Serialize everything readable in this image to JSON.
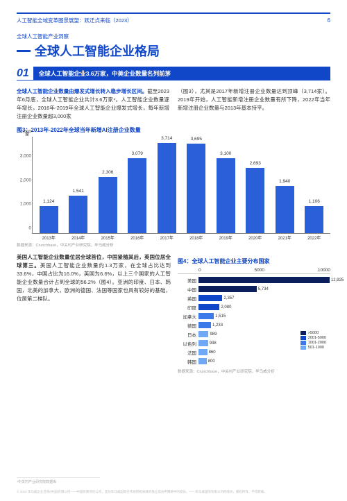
{
  "header": {
    "left": "人工智能全域变革图景展望：跃迁点来临（2023）",
    "pageNum": "6"
  },
  "subtitle": "全球人工智能产业洞察",
  "mainTitle": "全球人工智能企业格局",
  "section": {
    "num": "01",
    "text": "全球人工智能企业3.6万家，中美企业数量名列前茅"
  },
  "bodyL": {
    "lead": "全球人工智能企业数量由爆发式增长转入稳步增长区间。",
    "rest": "截至2023年6月底，全球人工智能企业共计3.6万家⁴。人工智能企业数量逐年增长，2016年-2019年全球人工智能企业爆发式增长，每年新增注册企业数量超3,000家"
  },
  "bodyR": "（图3），尤其是2017年新增注册企业数量达到顶峰（3,714家）。2019年开始，人工智能新增注册企业数量有所下降，2022年当年新增注册企业数量与2013年基本持平。",
  "chart3": {
    "title": "图3：2013年-2022年全球当年新增AI注册企业数量",
    "yUnit": "家",
    "yMax": 4000,
    "yTicks": [
      0,
      1000,
      2000,
      3000,
      4000
    ],
    "barColor": "#2b5fd9",
    "data": [
      {
        "x": "2013年",
        "v": 1124
      },
      {
        "x": "2014年",
        "v": 1541
      },
      {
        "x": "2015年",
        "v": 2306
      },
      {
        "x": "2016年",
        "v": 3079
      },
      {
        "x": "2017年",
        "v": 3714
      },
      {
        "x": "2018年",
        "v": 3695
      },
      {
        "x": "2019年",
        "v": 3100
      },
      {
        "x": "2020年",
        "v": 2693
      },
      {
        "x": "2021年",
        "v": 1940
      },
      {
        "x": "2022年",
        "v": 1106
      }
    ],
    "source": "数据来源：Crunchbase，中关村产业研究院，毕马威分析"
  },
  "lowerText": {
    "lead": "美国人工智能企业数量位居全球首位，中国紧随其后，英国位居全球第三。",
    "rest": "美国人工智能企业数量约1.3万家，在全球占比达到33.6%，中国占比为16.0%，英国为6.6%，以上三个国家的人工智能企业数量合计占到全球的56.2%（图4）。亚洲的印度、日本、韩国，北美的加拿大，欧洲的德国、法国等国家也具有较好的基础，位居第二梯队。"
  },
  "chart4": {
    "title": "图4：全球人工智能企业主要分布国家",
    "xMax": 13000,
    "xTicks": [
      "0",
      "5000",
      "10000"
    ],
    "colors": {
      "c1": "#0a1f5c",
      "c2": "#1047c8",
      "c3": "#3b7ae8",
      "c4": "#6fa8f5"
    },
    "data": [
      {
        "l": "美国",
        "v": 12925,
        "c": "c1"
      },
      {
        "l": "中国",
        "v": 5734,
        "c": "c1"
      },
      {
        "l": "英国",
        "v": 2357,
        "c": "c2"
      },
      {
        "l": "印度",
        "v": 2080,
        "c": "c2"
      },
      {
        "l": "加拿大",
        "v": 1515,
        "c": "c3"
      },
      {
        "l": "德国",
        "v": 1233,
        "c": "c3"
      },
      {
        "l": "日本",
        "v": 989,
        "c": "c4"
      },
      {
        "l": "以色列",
        "v": 938,
        "c": "c4"
      },
      {
        "l": "法国",
        "v": 860,
        "c": "c4"
      },
      {
        "l": "韩国",
        "v": 800,
        "c": "c4"
      }
    ],
    "legend": [
      {
        "c": "c1",
        "t": ">5000"
      },
      {
        "c": "c2",
        "t": "2001-5000"
      },
      {
        "c": "c3",
        "t": "1001-2000"
      },
      {
        "c": "c4",
        "t": "501-1000"
      }
    ],
    "source": "数据来源：Crunchbase，中关村产业研究院，毕马威分析"
  },
  "footnote": "⁴中关村产业研究院数据库",
  "copyright": "© 2023 毕马威企业咨询(中国)有限公司——中国有限责任公司，是与毕马威国际合作组织相关联的独立成员所网络中的成员。——毕马威国际有限公司的成员，版权所有，不得转载。"
}
